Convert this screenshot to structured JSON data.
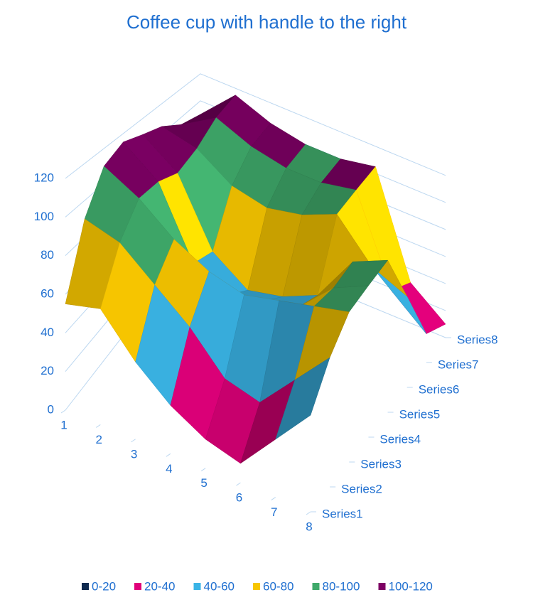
{
  "chart_data": {
    "type": "surface",
    "title": "Coffee cup with handle to the right",
    "categories": [
      1,
      2,
      3,
      4,
      5,
      6,
      7,
      8
    ],
    "series": [
      {
        "name": "Series1",
        "values": [
          55,
          60,
          40,
          25,
          15,
          10,
          30,
          50
        ]
      },
      {
        "name": "Series2",
        "values": [
          90,
          85,
          70,
          55,
          35,
          30,
          50,
          70
        ]
      },
      {
        "name": "Series3",
        "values": [
          110,
          100,
          85,
          75,
          70,
          75,
          80,
          85
        ]
      },
      {
        "name": "Series4",
        "values": [
          115,
          100,
          60,
          50,
          55,
          60,
          80,
          90
        ]
      },
      {
        "name": "Series5",
        "values": [
          110,
          95,
          55,
          40,
          45,
          55,
          85,
          95
        ]
      },
      {
        "name": "Series6",
        "values": [
          105,
          100,
          85,
          80,
          85,
          95,
          70,
          60
        ]
      },
      {
        "name": "Series7",
        "values": [
          95,
          110,
          100,
          95,
          95,
          100,
          40,
          20
        ]
      },
      {
        "name": "Series8",
        "values": [
          90,
          115,
          105,
          100,
          100,
          105,
          30,
          10
        ]
      }
    ],
    "zlim": [
      0,
      120
    ],
    "zticks": [
      0,
      20,
      40,
      60,
      80,
      100,
      120
    ],
    "bands": [
      {
        "label": "0-20",
        "from": 0,
        "to": 20,
        "color": "#0f2a4f"
      },
      {
        "label": "20-40",
        "from": 20,
        "to": 40,
        "color": "#e0007a"
      },
      {
        "label": "40-60",
        "from": 40,
        "to": 60,
        "color": "#3ab4e6"
      },
      {
        "label": "60-80",
        "from": 60,
        "to": 80,
        "color": "#f7c600"
      },
      {
        "label": "80-100",
        "from": 80,
        "to": 100,
        "color": "#3fa96a"
      },
      {
        "label": "100-120",
        "from": 100,
        "to": 120,
        "color": "#7d0064"
      }
    ]
  }
}
